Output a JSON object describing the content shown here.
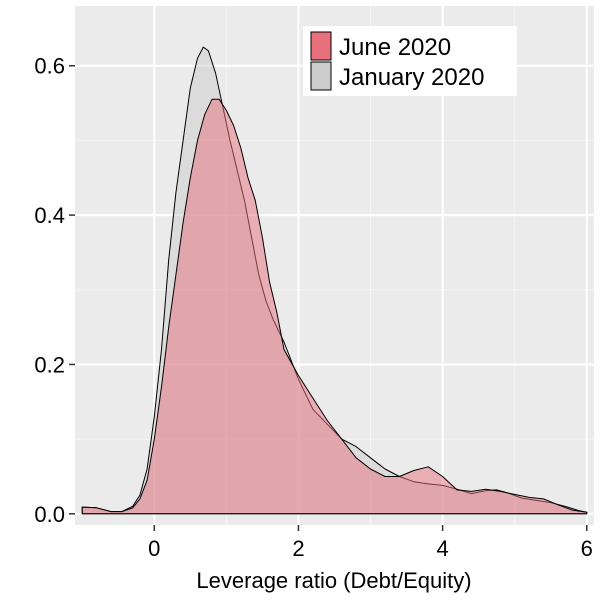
{
  "chart_data": {
    "type": "area",
    "title": "",
    "xlabel": "Leverage ratio (Debt/Equity)",
    "ylabel": "",
    "xlim": [
      -1.1,
      6.1
    ],
    "ylim": [
      -0.015,
      0.68
    ],
    "x_ticks": [
      0,
      2,
      4,
      6
    ],
    "x_tick_labels": [
      "0",
      "2",
      "4",
      "6"
    ],
    "y_ticks": [
      0.0,
      0.2,
      0.4,
      0.6
    ],
    "y_tick_labels": [
      "0.0",
      "0.2",
      "0.4",
      "0.6"
    ],
    "grid": true,
    "legend_position": "top-right",
    "background": "#ebebeb",
    "series": [
      {
        "name": "January 2020",
        "fill": "#cccccc",
        "points": [
          [
            -1.0,
            0.009
          ],
          [
            -0.8,
            0.008
          ],
          [
            -0.6,
            0.003
          ],
          [
            -0.45,
            0.003
          ],
          [
            -0.3,
            0.01
          ],
          [
            -0.2,
            0.025
          ],
          [
            -0.1,
            0.06
          ],
          [
            0.0,
            0.13
          ],
          [
            0.1,
            0.22
          ],
          [
            0.2,
            0.34
          ],
          [
            0.3,
            0.43
          ],
          [
            0.4,
            0.5
          ],
          [
            0.5,
            0.57
          ],
          [
            0.6,
            0.61
          ],
          [
            0.68,
            0.625
          ],
          [
            0.75,
            0.62
          ],
          [
            0.85,
            0.59
          ],
          [
            0.95,
            0.545
          ],
          [
            1.05,
            0.5
          ],
          [
            1.15,
            0.46
          ],
          [
            1.25,
            0.42
          ],
          [
            1.35,
            0.37
          ],
          [
            1.45,
            0.32
          ],
          [
            1.55,
            0.285
          ],
          [
            1.65,
            0.26
          ],
          [
            1.8,
            0.23
          ],
          [
            2.0,
            0.18
          ],
          [
            2.2,
            0.14
          ],
          [
            2.4,
            0.12
          ],
          [
            2.6,
            0.1
          ],
          [
            2.8,
            0.09
          ],
          [
            3.0,
            0.075
          ],
          [
            3.2,
            0.06
          ],
          [
            3.4,
            0.05
          ],
          [
            3.6,
            0.043
          ],
          [
            3.8,
            0.04
          ],
          [
            4.0,
            0.038
          ],
          [
            4.2,
            0.033
          ],
          [
            4.4,
            0.027
          ],
          [
            4.6,
            0.031
          ],
          [
            4.75,
            0.032
          ],
          [
            4.9,
            0.028
          ],
          [
            5.1,
            0.021
          ],
          [
            5.3,
            0.018
          ],
          [
            5.5,
            0.015
          ],
          [
            5.7,
            0.01
          ],
          [
            5.9,
            0.004
          ],
          [
            6.0,
            0.002
          ]
        ]
      },
      {
        "name": "June 2020",
        "fill": "#e8707d",
        "points": [
          [
            -1.0,
            0.009
          ],
          [
            -0.8,
            0.008
          ],
          [
            -0.6,
            0.003
          ],
          [
            -0.45,
            0.003
          ],
          [
            -0.3,
            0.008
          ],
          [
            -0.2,
            0.02
          ],
          [
            -0.1,
            0.045
          ],
          [
            0.0,
            0.1
          ],
          [
            0.1,
            0.17
          ],
          [
            0.2,
            0.25
          ],
          [
            0.3,
            0.32
          ],
          [
            0.4,
            0.39
          ],
          [
            0.5,
            0.45
          ],
          [
            0.6,
            0.5
          ],
          [
            0.7,
            0.535
          ],
          [
            0.8,
            0.555
          ],
          [
            0.9,
            0.555
          ],
          [
            1.0,
            0.54
          ],
          [
            1.1,
            0.52
          ],
          [
            1.2,
            0.49
          ],
          [
            1.3,
            0.45
          ],
          [
            1.4,
            0.42
          ],
          [
            1.5,
            0.37
          ],
          [
            1.6,
            0.31
          ],
          [
            1.7,
            0.27
          ],
          [
            1.8,
            0.22
          ],
          [
            2.0,
            0.185
          ],
          [
            2.2,
            0.155
          ],
          [
            2.4,
            0.125
          ],
          [
            2.6,
            0.1
          ],
          [
            2.8,
            0.075
          ],
          [
            3.0,
            0.06
          ],
          [
            3.2,
            0.05
          ],
          [
            3.4,
            0.05
          ],
          [
            3.6,
            0.058
          ],
          [
            3.8,
            0.063
          ],
          [
            4.0,
            0.05
          ],
          [
            4.2,
            0.032
          ],
          [
            4.4,
            0.03
          ],
          [
            4.6,
            0.033
          ],
          [
            4.8,
            0.03
          ],
          [
            5.0,
            0.026
          ],
          [
            5.2,
            0.022
          ],
          [
            5.4,
            0.02
          ],
          [
            5.6,
            0.012
          ],
          [
            5.8,
            0.005
          ],
          [
            6.0,
            0.002
          ]
        ]
      }
    ]
  },
  "legend": {
    "items": [
      {
        "label": "June 2020",
        "color": "#e8707d"
      },
      {
        "label": "January 2020",
        "color": "#cccccc"
      }
    ]
  }
}
